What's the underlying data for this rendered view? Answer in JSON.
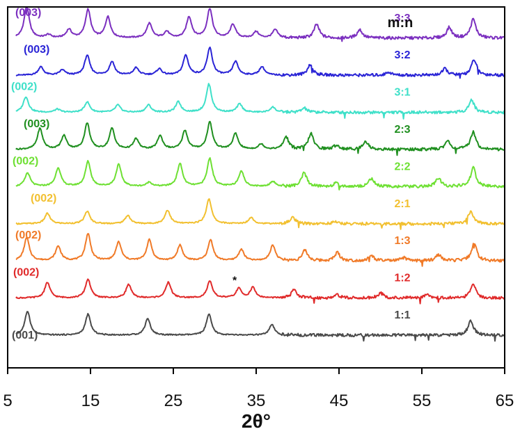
{
  "chart_data": {
    "type": "line",
    "title": "",
    "xlabel": "2θ°",
    "ylabel": "",
    "xlim": [
      5,
      65
    ],
    "xticks": [
      "5",
      "15",
      "25",
      "35",
      "45",
      "55",
      "65"
    ],
    "grid": false,
    "y_axis": "stacked offset intensity (arbitrary units, no ticks)",
    "legend_title": "m:n",
    "annotation_star": "*",
    "series": [
      {
        "name": "3:3",
        "color": "#7b2fbf",
        "plane": "(003)",
        "offset": 9,
        "peaks": [
          [
            7.3,
            3
          ],
          [
            9.9,
            0.3
          ],
          [
            12.4,
            0.8
          ],
          [
            14.7,
            2.7
          ],
          [
            17.1,
            2
          ],
          [
            22.1,
            1.4
          ],
          [
            24.2,
            0.6
          ],
          [
            26.9,
            2
          ],
          [
            29.4,
            2.8
          ],
          [
            32.2,
            1.3
          ],
          [
            35,
            0.6
          ],
          [
            37.3,
            0.8
          ],
          [
            42.3,
            1.3
          ],
          [
            47.5,
            0.8
          ],
          [
            58.3,
            1
          ],
          [
            61.2,
            1.8
          ]
        ]
      },
      {
        "name": "3:2",
        "color": "#2a24d6",
        "plane": "(003)",
        "offset": 8,
        "peaks": [
          [
            9,
            0.8
          ],
          [
            11.6,
            0.5
          ],
          [
            14.6,
            1.9
          ],
          [
            17.6,
            1.3
          ],
          [
            20.5,
            0.7
          ],
          [
            23.3,
            0.6
          ],
          [
            26.5,
            1.9
          ],
          [
            29.4,
            2.6
          ],
          [
            32.5,
            1.3
          ],
          [
            35.7,
            0.8
          ],
          [
            41.5,
            1
          ],
          [
            51,
            0.3
          ],
          [
            57.8,
            0.6
          ],
          [
            61.3,
            1.5
          ]
        ]
      },
      {
        "name": "3:1",
        "color": "#3fe0c9",
        "plane": "(002)",
        "offset": 7,
        "peaks": [
          [
            7.2,
            1.5
          ],
          [
            11,
            0.3
          ],
          [
            14.6,
            1
          ],
          [
            18.3,
            0.7
          ],
          [
            22,
            0.7
          ],
          [
            25.6,
            1
          ],
          [
            29.3,
            2.7
          ],
          [
            33,
            0.8
          ],
          [
            37,
            0.5
          ],
          [
            40.8,
            0.4
          ],
          [
            61,
            1.2
          ]
        ]
      },
      {
        "name": "2:3",
        "color": "#1f8f1f",
        "plane": "(003)",
        "offset": 6,
        "peaks": [
          [
            8.9,
            2
          ],
          [
            11.8,
            1.3
          ],
          [
            14.6,
            2.5
          ],
          [
            17.6,
            2
          ],
          [
            20.5,
            1
          ],
          [
            23.4,
            1.3
          ],
          [
            26.4,
            1.8
          ],
          [
            29.4,
            2.6
          ],
          [
            32.5,
            1.5
          ],
          [
            35.6,
            0.5
          ],
          [
            38.6,
            1.2
          ],
          [
            41.6,
            1.5
          ],
          [
            44.7,
            0.4
          ],
          [
            48.2,
            0.8
          ],
          [
            58.1,
            0.8
          ],
          [
            61.2,
            1.7
          ]
        ]
      },
      {
        "name": "2:2",
        "color": "#6ee033",
        "plane": "(002)",
        "offset": 5,
        "peaks": [
          [
            7.4,
            1.3
          ],
          [
            11.1,
            1.8
          ],
          [
            14.7,
            2.4
          ],
          [
            18.4,
            2.1
          ],
          [
            22.1,
            0.4
          ],
          [
            25.8,
            2.2
          ],
          [
            29.4,
            2.7
          ],
          [
            33.2,
            1.5
          ],
          [
            37,
            0.5
          ],
          [
            40.8,
            1.3
          ],
          [
            44.6,
            0.3
          ],
          [
            48.9,
            0.8
          ],
          [
            57,
            0.8
          ],
          [
            61.2,
            1.8
          ]
        ]
      },
      {
        "name": "2:1",
        "color": "#f2c030",
        "plane": "(002)",
        "offset": 4,
        "peaks": [
          [
            9.8,
            1
          ],
          [
            14.6,
            1.2
          ],
          [
            19.5,
            0.8
          ],
          [
            24.3,
            1.3
          ],
          [
            29.3,
            2.4
          ],
          [
            34.4,
            0.6
          ],
          [
            39.4,
            0.6
          ],
          [
            44.5,
            0.2
          ],
          [
            60.9,
            1.2
          ]
        ]
      },
      {
        "name": "1:3",
        "color": "#f07a28",
        "plane": "(002)",
        "offset": 3,
        "peaks": [
          [
            7.3,
            2.2
          ],
          [
            11.1,
            1.4
          ],
          [
            14.7,
            2.6
          ],
          [
            18.4,
            1.8
          ],
          [
            22.1,
            2
          ],
          [
            25.8,
            1.5
          ],
          [
            29.5,
            2
          ],
          [
            33.2,
            1.1
          ],
          [
            37,
            1.5
          ],
          [
            40.9,
            1
          ],
          [
            44.8,
            0.8
          ],
          [
            48.9,
            0.5
          ],
          [
            52.8,
            0.3
          ],
          [
            57,
            0.6
          ],
          [
            61.3,
            1.7
          ]
        ]
      },
      {
        "name": "1:2",
        "color": "#e02a2a",
        "plane": "(002)",
        "offset": 2,
        "peaks": [
          [
            9.8,
            1.5
          ],
          [
            14.7,
            1.8
          ],
          [
            19.6,
            1.3
          ],
          [
            24.4,
            1.5
          ],
          [
            29.4,
            1.6
          ],
          [
            32.9,
            0.9
          ],
          [
            34.6,
            1
          ],
          [
            39.6,
            0.8
          ],
          [
            44.8,
            0.3
          ],
          [
            50,
            0.5
          ],
          [
            55.6,
            0.4
          ],
          [
            61.2,
            1.3
          ]
        ]
      },
      {
        "name": "1:1",
        "color": "#4a4a4a",
        "plane": "(001)",
        "offset": 1,
        "peaks": [
          [
            7.4,
            2.3
          ],
          [
            14.7,
            2
          ],
          [
            21.9,
            1.6
          ],
          [
            29.3,
            2
          ],
          [
            36.9,
            1
          ],
          [
            60.9,
            1.4
          ]
        ]
      }
    ]
  }
}
